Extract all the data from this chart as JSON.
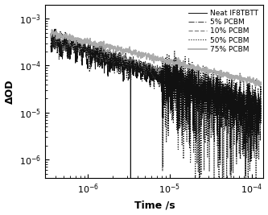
{
  "title": "",
  "xlabel": "Time /s",
  "ylabel": "ΔOD",
  "xlim": [
    3e-07,
    0.00014
  ],
  "ylim": [
    4e-07,
    0.002
  ],
  "legend_entries": [
    "Neat IF8TBTT",
    "5% PCBM",
    "10% PCBM",
    "50% PCBM",
    "75% PCBM"
  ],
  "line_styles": [
    "-",
    "-.",
    "--",
    ":",
    "-"
  ],
  "line_colors": [
    "#111111",
    "#444444",
    "#888888",
    "#111111",
    "#aaaaaa"
  ],
  "line_widths": [
    0.7,
    0.8,
    1.0,
    0.8,
    1.2
  ],
  "background_color": "#ffffff",
  "tick_labelsize": 8,
  "legend_fontsize": 6.5
}
